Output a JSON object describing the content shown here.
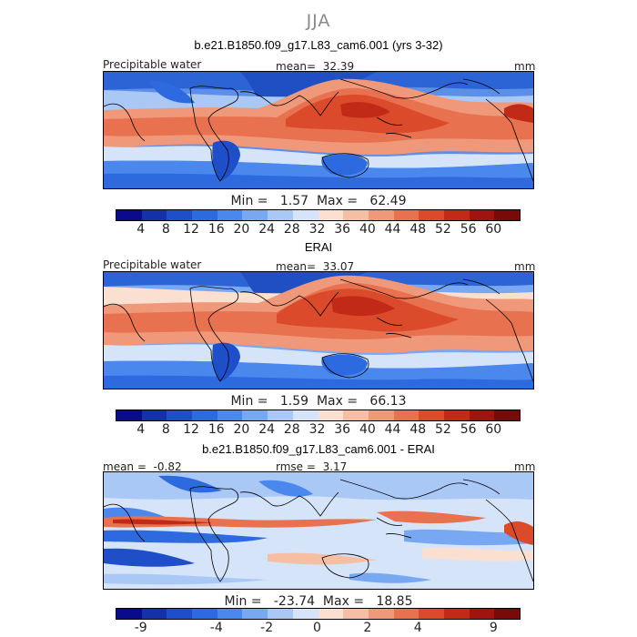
{
  "figure": {
    "season": "JJA",
    "panel1": {
      "title": "b.e21.B1850.f09_g17.L83_cam6.001 (yrs 3-32)",
      "variable": "Precipitable water",
      "mean_label": "mean=",
      "mean": "32.39",
      "units": "mm",
      "min_label": "Min =",
      "min": "1.57",
      "max_label": "Max =",
      "max": "62.49"
    },
    "panel2": {
      "title": "ERAI",
      "variable": "Precipitable water",
      "mean_label": "mean=",
      "mean": "33.07",
      "units": "mm",
      "min_label": "Min =",
      "min": "1.59",
      "max_label": "Max =",
      "max": "66.13"
    },
    "panel3": {
      "title": "b.e21.B1850.f09_g17.L83_cam6.001 - ERAI",
      "mean_label": "mean =",
      "mean": "-0.82",
      "rmse_label": "rmse =",
      "rmse": "3.17",
      "units": "mm",
      "min_label": "Min =",
      "min": "-23.74",
      "max_label": "Max =",
      "max": "18.85"
    },
    "colorbar_abs": {
      "ticks": [
        "4",
        "8",
        "12",
        "16",
        "20",
        "24",
        "28",
        "32",
        "36",
        "40",
        "44",
        "48",
        "52",
        "56",
        "60"
      ],
      "colors": [
        "#0a0a8c",
        "#1432a8",
        "#1e4fc8",
        "#2d6ae0",
        "#4a88ee",
        "#79a8f2",
        "#a9c8f6",
        "#d6e4fa",
        "#fbe0d2",
        "#f6bea3",
        "#f0987a",
        "#e8714f",
        "#dc4a2c",
        "#c22a18",
        "#a01410",
        "#780a0a"
      ]
    },
    "colorbar_diff": {
      "ticks": [
        "-9",
        "-4",
        "-2",
        "0",
        "2",
        "4",
        "9"
      ],
      "colors": [
        "#0a0a8c",
        "#1432a8",
        "#1e4fc8",
        "#2d6ae0",
        "#4a88ee",
        "#79a8f2",
        "#a9c8f6",
        "#d6e4fa",
        "#fbe0d2",
        "#f6bea3",
        "#f0987a",
        "#e8714f",
        "#dc4a2c",
        "#c22a18",
        "#a01410",
        "#780a0a"
      ]
    }
  }
}
